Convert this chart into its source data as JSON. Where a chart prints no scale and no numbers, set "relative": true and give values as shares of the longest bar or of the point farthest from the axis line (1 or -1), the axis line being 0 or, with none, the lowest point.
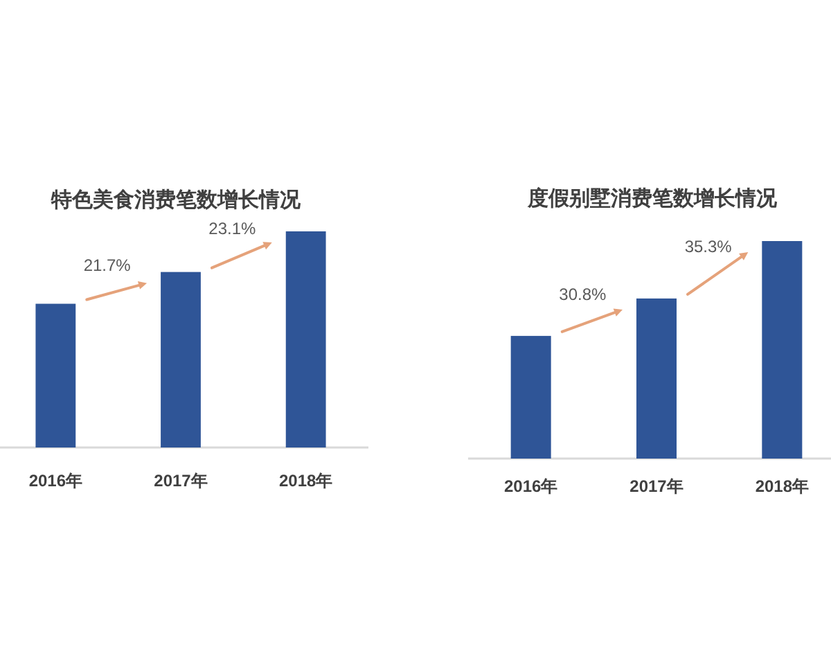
{
  "chart_data": [
    {
      "type": "bar",
      "title": "特色美食消费笔数增长情况",
      "categories": [
        "2016年",
        "2017年",
        "2018年"
      ],
      "values": [
        0.665,
        0.812,
        1
      ],
      "color": "#2f5597",
      "relative": true,
      "annotations": [
        "21.7%",
        "23.1%"
      ]
    },
    {
      "type": "bar",
      "title": "度假别墅消费笔数增长情况",
      "categories": [
        "2016年",
        "2017年",
        "2018年"
      ],
      "values": [
        0.564,
        0.736,
        1
      ],
      "color": "#2f5597",
      "relative": true,
      "annotations": [
        "30.8%",
        "35.3%"
      ]
    }
  ]
}
